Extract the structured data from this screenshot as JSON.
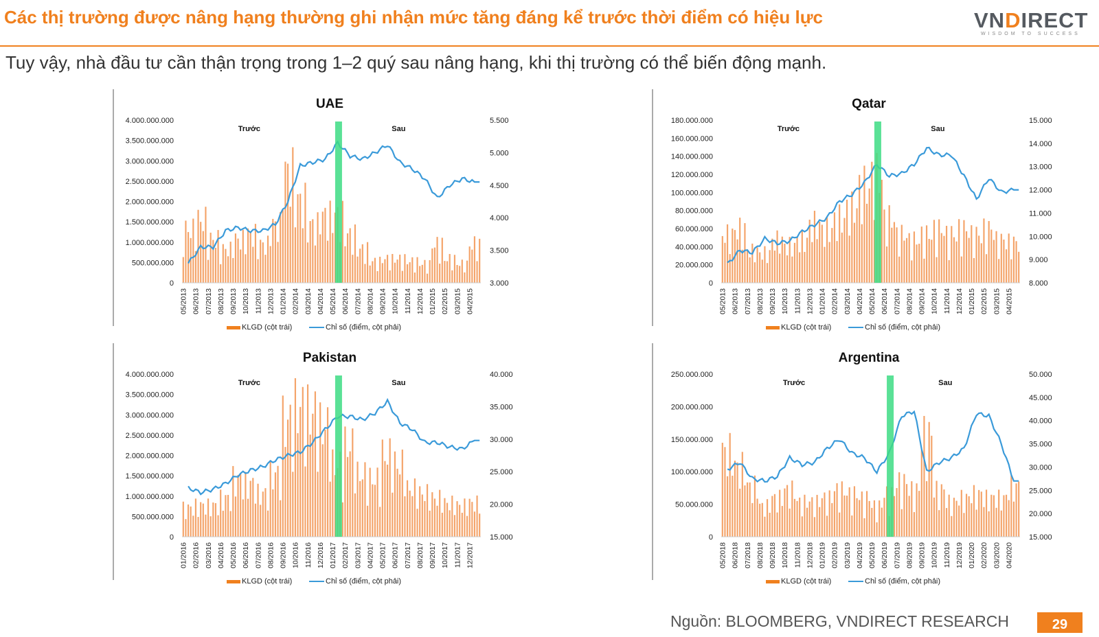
{
  "header": {
    "title": "Các thị trường được nâng hạng thường ghi nhận mức tăng đáng kể trước thời điểm có hiệu lực",
    "subtitle": "Tuy vậy, nhà đầu tư cần thận trọng trong 1–2 quý sau nâng hạng, khi thị trường có thể biến động mạnh.",
    "logo_text_left": "VN",
    "logo_text_accent": "D",
    "logo_text_right": "IRECT",
    "logo_tagline": "WISDOM TO SUCCESS"
  },
  "footer": {
    "source": "Nguồn: BLOOMBERG, VNDIRECT RESEARCH",
    "page_number": "29"
  },
  "colors": {
    "accent": "#f0801e",
    "bar": "#f4a46a",
    "line": "#3a9ad9",
    "highlight": "#3ddc84"
  },
  "chart_data": [
    {
      "type": "bar+line",
      "title": "UAE",
      "before_label": "Trước",
      "after_label": "Sau",
      "legend": [
        "KLGD (cột trái)",
        "Chỉ số (điểm, cột phải)"
      ],
      "legend_position": "bottom",
      "left_ticks": [
        "0",
        "500.000.000",
        "1.000.000.000",
        "1.500.000.000",
        "2.000.000.000",
        "2.500.000.000",
        "3.000.000.000",
        "3.500.000.000",
        "4.000.000.000"
      ],
      "right_ticks": [
        "3.000",
        "3.500",
        "4.000",
        "4.500",
        "5.000",
        "5.500"
      ],
      "ylim_left": [
        0,
        4000000000
      ],
      "ylim_right": [
        3000,
        5500
      ],
      "x_labels": [
        "05/2013",
        "06/2013",
        "07/2013",
        "08/2013",
        "09/2013",
        "10/2013",
        "11/2013",
        "12/2013",
        "01/2014",
        "02/2014",
        "03/2014",
        "04/2014",
        "05/2014",
        "06/2014",
        "07/2014",
        "08/2014",
        "09/2014",
        "10/2014",
        "11/2014",
        "12/2014",
        "01/2015",
        "02/2015",
        "03/2015",
        "04/2015"
      ],
      "highlight_month": "05/2014",
      "volume_monthly": [
        1100000000,
        1300000000,
        900000000,
        700000000,
        900000000,
        1000000000,
        800000000,
        1200000000,
        2300000000,
        1700000000,
        1200000000,
        1400000000,
        1400000000,
        1000000000,
        700000000,
        450000000,
        500000000,
        500000000,
        450000000,
        400000000,
        800000000,
        500000000,
        400000000,
        800000000
      ],
      "index_monthly": [
        3300,
        3550,
        3550,
        3800,
        3850,
        3800,
        3800,
        3900,
        4250,
        4800,
        4850,
        4900,
        5150,
        4950,
        4900,
        5000,
        5120,
        4850,
        4750,
        4600,
        4300,
        4500,
        4600,
        4550
      ]
    },
    {
      "type": "bar+line",
      "title": "Qatar",
      "before_label": "Trước",
      "after_label": "Sau",
      "legend": [
        "KLGD (cột trái)",
        "Chỉ số (điểm, cột phải)"
      ],
      "legend_position": "bottom",
      "left_ticks": [
        "0",
        "20.000.000",
        "40.000.000",
        "60.000.000",
        "80.000.000",
        "100.000.000",
        "120.000.000",
        "140.000.000",
        "160.000.000",
        "180.000.000"
      ],
      "right_ticks": [
        "8.000",
        "9.000",
        "10.000",
        "11.000",
        "12.000",
        "13.000",
        "14.000",
        "15.000"
      ],
      "ylim_left": [
        0,
        180000000
      ],
      "ylim_right": [
        8000,
        15000
      ],
      "x_labels": [
        "05/2013",
        "06/2013",
        "07/2013",
        "08/2013",
        "09/2013",
        "10/2013",
        "11/2013",
        "12/2013",
        "01/2014",
        "02/2014",
        "03/2014",
        "04/2014",
        "05/2014",
        "06/2014",
        "07/2014",
        "08/2014",
        "09/2014",
        "10/2014",
        "11/2014",
        "12/2014",
        "01/2015",
        "02/2015",
        "03/2015",
        "04/2015"
      ],
      "highlight_month": "05/2014",
      "volume_monthly": [
        45000000,
        50000000,
        30000000,
        28000000,
        40000000,
        35000000,
        40000000,
        55000000,
        50000000,
        60000000,
        70000000,
        90000000,
        100000000,
        60000000,
        45000000,
        40000000,
        45000000,
        50000000,
        45000000,
        50000000,
        45000000,
        50000000,
        40000000,
        38000000
      ],
      "index_monthly": [
        8800,
        9400,
        9300,
        9900,
        9700,
        9800,
        10200,
        10500,
        10800,
        11500,
        11800,
        12300,
        13100,
        12600,
        12700,
        13100,
        13800,
        13500,
        13500,
        12600,
        11600,
        12500,
        11900,
        12000
      ]
    },
    {
      "type": "bar+line",
      "title": "Pakistan",
      "before_label": "Trước",
      "after_label": "Sau",
      "legend": [
        "KLGD (cột trái)",
        "Chỉ số (điểm, cột phải)"
      ],
      "legend_position": "bottom",
      "left_ticks": [
        "0",
        "500.000.000",
        "1.000.000.000",
        "1.500.000.000",
        "2.000.000.000",
        "2.500.000.000",
        "3.000.000.000",
        "3.500.000.000",
        "4.000.000.000"
      ],
      "right_ticks": [
        "15.000",
        "20.000",
        "25.000",
        "30.000",
        "35.000",
        "40.000"
      ],
      "ylim_left": [
        0,
        4000000000
      ],
      "ylim_right": [
        15000,
        40000
      ],
      "x_labels": [
        "01/2016",
        "02/2016",
        "03/2016",
        "04/2016",
        "05/2016",
        "06/2016",
        "07/2016",
        "08/2016",
        "09/2016",
        "10/2016",
        "11/2016",
        "12/2016",
        "01/2017",
        "02/2017",
        "03/2017",
        "04/2017",
        "05/2017",
        "06/2017",
        "07/2017",
        "08/2017",
        "09/2017",
        "10/2017",
        "11/2017",
        "12/2017"
      ],
      "highlight_month": "01/2017",
      "volume_monthly": [
        600000000,
        650000000,
        650000000,
        800000000,
        1200000000,
        1100000000,
        900000000,
        1300000000,
        2400000000,
        2700000000,
        2600000000,
        2300000000,
        1500000000,
        1900000000,
        1300000000,
        1200000000,
        1700000000,
        1500000000,
        1000000000,
        900000000,
        800000000,
        700000000,
        650000000,
        700000000
      ],
      "index_monthly": [
        22500,
        21800,
        22300,
        23200,
        24500,
        25200,
        25800,
        26800,
        27500,
        28000,
        29500,
        31500,
        33500,
        33500,
        33000,
        34000,
        35800,
        32500,
        31500,
        29500,
        29500,
        28800,
        28500,
        29800
      ]
    },
    {
      "type": "bar+line",
      "title": "Argentina",
      "before_label": "Trước",
      "after_label": "Sau",
      "legend": [
        "KLGD (cột trái)",
        "Chỉ số (điểm, cột phải)"
      ],
      "legend_position": "bottom",
      "left_ticks": [
        "0",
        "50.000.000",
        "100.000.000",
        "150.000.000",
        "200.000.000",
        "250.000.000"
      ],
      "right_ticks": [
        "15.000",
        "20.000",
        "25.000",
        "30.000",
        "35.000",
        "40.000",
        "45.000",
        "50.000"
      ],
      "ylim_left": [
        0,
        250000000
      ],
      "ylim_right": [
        15000,
        50000
      ],
      "x_labels": [
        "05/2018",
        "06/2018",
        "07/2018",
        "08/2018",
        "09/2018",
        "10/2018",
        "11/2018",
        "12/2018",
        "01/2019",
        "02/2019",
        "03/2019",
        "04/2019",
        "05/2019",
        "06/2019",
        "07/2019",
        "08/2019",
        "09/2019",
        "10/2019",
        "11/2019",
        "12/2019",
        "01/2020",
        "02/2020",
        "03/2020",
        "04/2020"
      ],
      "highlight_month": "06/2019",
      "volume_monthly": [
        110000000,
        90000000,
        65000000,
        40000000,
        50000000,
        60000000,
        45000000,
        45000000,
        50000000,
        60000000,
        55000000,
        50000000,
        40000000,
        55000000,
        70000000,
        60000000,
        130000000,
        60000000,
        45000000,
        50000000,
        55000000,
        50000000,
        50000000,
        65000000
      ],
      "index_monthly": [
        29500,
        31000,
        27500,
        27000,
        28000,
        32000,
        30500,
        31000,
        34000,
        36000,
        33000,
        32000,
        29000,
        33000,
        41000,
        42000,
        29000,
        31000,
        32000,
        34000,
        41500,
        41000,
        35000,
        27000
      ]
    }
  ]
}
